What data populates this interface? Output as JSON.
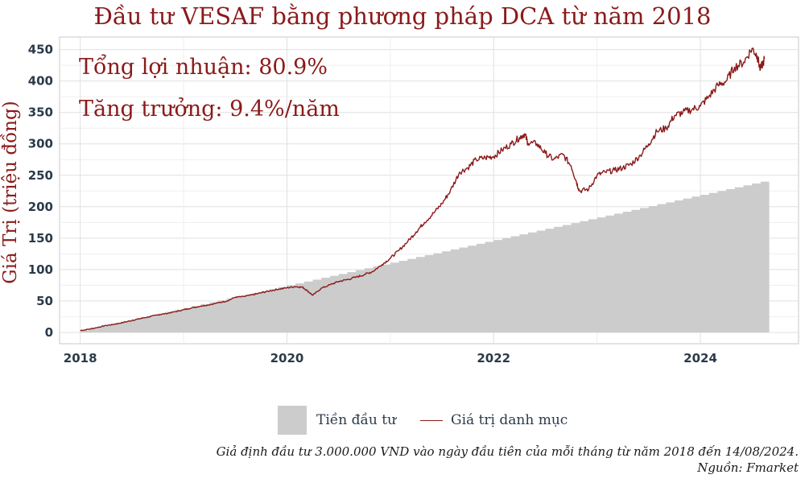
{
  "chart_data": {
    "type": "area",
    "title": "Đầu tư VESAF bằng phương pháp DCA từ năm 2018",
    "ylabel": "Giá Trị (triệu đồng)",
    "xlabel": "",
    "xlim": [
      2017.8,
      2024.95
    ],
    "ylim": [
      -18,
      470
    ],
    "x_ticks": [
      2018,
      2020,
      2022,
      2024
    ],
    "y_ticks": [
      0,
      50,
      100,
      150,
      200,
      250,
      300,
      350,
      400,
      450
    ],
    "grid": true,
    "legend_position": "bottom",
    "annotations": [
      "Tổng lợi nhuận: 80.9%",
      "Tăng trưởng: 9.4%/năm"
    ],
    "series": [
      {
        "name": "Tiền đầu tư",
        "kind": "step-area",
        "color": "#cccccc",
        "monthly_contribution_million": 3,
        "start_date": "2018-01-01",
        "months": 80,
        "x": [
          2018.0,
          2024.62
        ],
        "values": [
          3,
          240
        ]
      },
      {
        "name": "Giá trị danh mục",
        "kind": "line",
        "color": "#8b1a1a",
        "x": [
          2018.0,
          2018.08,
          2018.17,
          2018.25,
          2018.33,
          2018.42,
          2018.5,
          2018.58,
          2018.67,
          2018.75,
          2018.83,
          2018.92,
          2019.0,
          2019.08,
          2019.17,
          2019.25,
          2019.33,
          2019.42,
          2019.5,
          2019.58,
          2019.67,
          2019.75,
          2019.83,
          2019.92,
          2020.0,
          2020.08,
          2020.15,
          2020.2,
          2020.25,
          2020.33,
          2020.42,
          2020.5,
          2020.58,
          2020.67,
          2020.75,
          2020.83,
          2020.92,
          2021.0,
          2021.08,
          2021.17,
          2021.25,
          2021.33,
          2021.42,
          2021.5,
          2021.58,
          2021.67,
          2021.75,
          2021.83,
          2021.92,
          2022.0,
          2022.08,
          2022.17,
          2022.25,
          2022.3,
          2022.33,
          2022.42,
          2022.5,
          2022.58,
          2022.67,
          2022.75,
          2022.8,
          2022.83,
          2022.92,
          2023.0,
          2023.08,
          2023.17,
          2023.25,
          2023.33,
          2023.42,
          2023.5,
          2023.58,
          2023.67,
          2023.75,
          2023.83,
          2023.92,
          2024.0,
          2024.08,
          2024.17,
          2024.25,
          2024.33,
          2024.42,
          2024.5,
          2024.55,
          2024.58,
          2024.62
        ],
        "values": [
          3,
          5,
          8,
          11,
          13,
          16,
          19,
          22,
          25,
          28,
          30,
          33,
          36,
          39,
          42,
          44,
          47,
          50,
          56,
          57,
          60,
          63,
          66,
          69,
          71,
          73,
          72,
          66,
          59,
          70,
          76,
          81,
          84,
          88,
          92,
          97,
          108,
          118,
          130,
          145,
          160,
          175,
          190,
          205,
          225,
          255,
          262,
          275,
          278,
          280,
          290,
          300,
          310,
          316,
          302,
          300,
          285,
          275,
          283,
          265,
          240,
          225,
          228,
          250,
          255,
          258,
          262,
          268,
          282,
          300,
          320,
          325,
          345,
          350,
          355,
          360,
          375,
          393,
          400,
          422,
          430,
          452,
          440,
          418,
          435
        ]
      }
    ]
  },
  "legend": {
    "invested_label": "Tiền đầu tư",
    "portfolio_label": "Giá trị danh mục"
  },
  "caption": {
    "line1": "Giả định đầu tư 3.000.000 VND vào ngày đầu tiên của mỗi tháng từ năm 2018 đến 14/08/2024.",
    "line2": "Nguồn: Fmarket"
  }
}
